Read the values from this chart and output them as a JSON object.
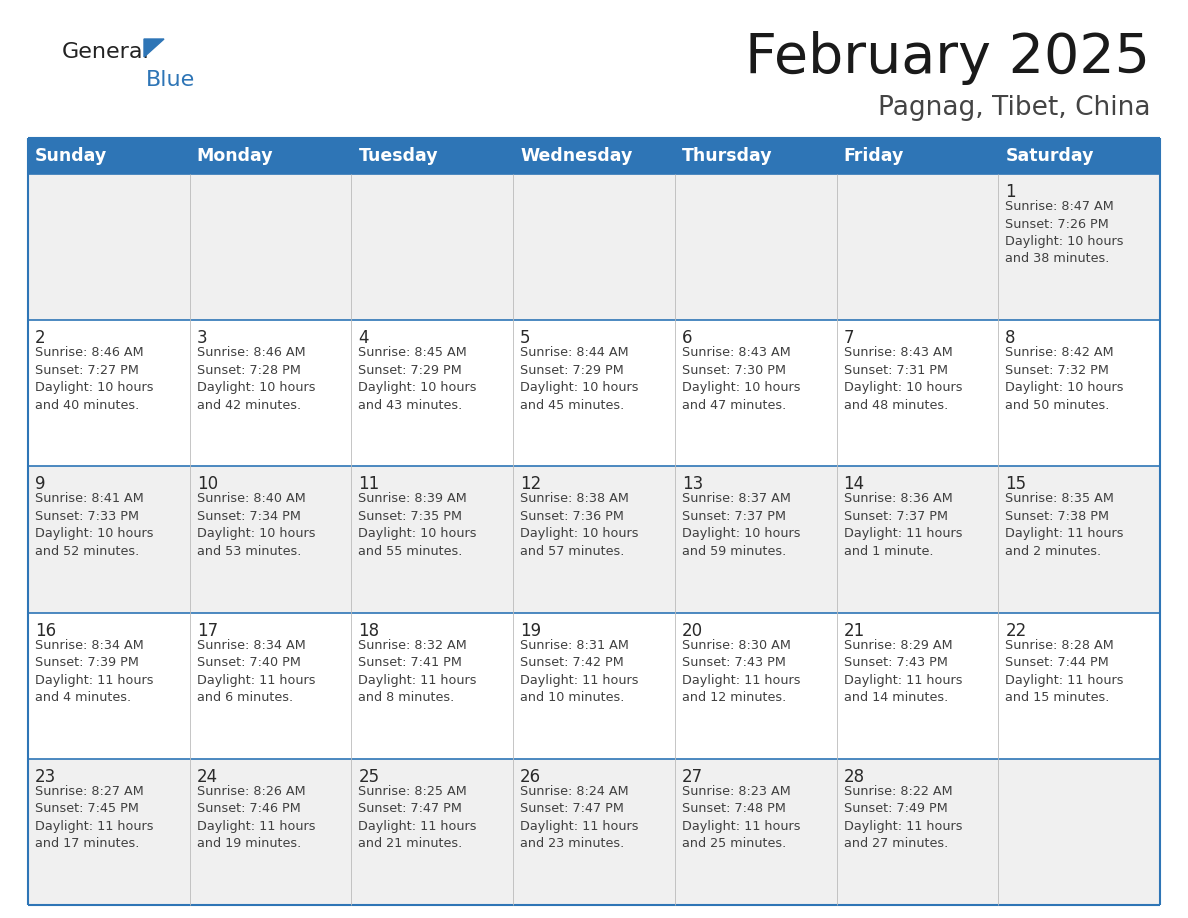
{
  "title": "February 2025",
  "subtitle": "Pagnag, Tibet, China",
  "header_color": "#2E75B6",
  "header_text_color": "#FFFFFF",
  "day_names": [
    "Sunday",
    "Monday",
    "Tuesday",
    "Wednesday",
    "Thursday",
    "Friday",
    "Saturday"
  ],
  "row_color_even": "#FFFFFF",
  "row_color_odd": "#F0F0F0",
  "border_color": "#2E75B6",
  "text_color": "#404040",
  "title_color": "#1a1a1a",
  "subtitle_color": "#444444",
  "calendar": [
    [
      null,
      null,
      null,
      null,
      null,
      null,
      {
        "day": 1,
        "sunrise": "8:47 AM",
        "sunset": "7:26 PM",
        "daylight_line1": "Daylight: 10 hours",
        "daylight_line2": "and 38 minutes."
      }
    ],
    [
      {
        "day": 2,
        "sunrise": "8:46 AM",
        "sunset": "7:27 PM",
        "daylight_line1": "Daylight: 10 hours",
        "daylight_line2": "and 40 minutes."
      },
      {
        "day": 3,
        "sunrise": "8:46 AM",
        "sunset": "7:28 PM",
        "daylight_line1": "Daylight: 10 hours",
        "daylight_line2": "and 42 minutes."
      },
      {
        "day": 4,
        "sunrise": "8:45 AM",
        "sunset": "7:29 PM",
        "daylight_line1": "Daylight: 10 hours",
        "daylight_line2": "and 43 minutes."
      },
      {
        "day": 5,
        "sunrise": "8:44 AM",
        "sunset": "7:29 PM",
        "daylight_line1": "Daylight: 10 hours",
        "daylight_line2": "and 45 minutes."
      },
      {
        "day": 6,
        "sunrise": "8:43 AM",
        "sunset": "7:30 PM",
        "daylight_line1": "Daylight: 10 hours",
        "daylight_line2": "and 47 minutes."
      },
      {
        "day": 7,
        "sunrise": "8:43 AM",
        "sunset": "7:31 PM",
        "daylight_line1": "Daylight: 10 hours",
        "daylight_line2": "and 48 minutes."
      },
      {
        "day": 8,
        "sunrise": "8:42 AM",
        "sunset": "7:32 PM",
        "daylight_line1": "Daylight: 10 hours",
        "daylight_line2": "and 50 minutes."
      }
    ],
    [
      {
        "day": 9,
        "sunrise": "8:41 AM",
        "sunset": "7:33 PM",
        "daylight_line1": "Daylight: 10 hours",
        "daylight_line2": "and 52 minutes."
      },
      {
        "day": 10,
        "sunrise": "8:40 AM",
        "sunset": "7:34 PM",
        "daylight_line1": "Daylight: 10 hours",
        "daylight_line2": "and 53 minutes."
      },
      {
        "day": 11,
        "sunrise": "8:39 AM",
        "sunset": "7:35 PM",
        "daylight_line1": "Daylight: 10 hours",
        "daylight_line2": "and 55 minutes."
      },
      {
        "day": 12,
        "sunrise": "8:38 AM",
        "sunset": "7:36 PM",
        "daylight_line1": "Daylight: 10 hours",
        "daylight_line2": "and 57 minutes."
      },
      {
        "day": 13,
        "sunrise": "8:37 AM",
        "sunset": "7:37 PM",
        "daylight_line1": "Daylight: 10 hours",
        "daylight_line2": "and 59 minutes."
      },
      {
        "day": 14,
        "sunrise": "8:36 AM",
        "sunset": "7:37 PM",
        "daylight_line1": "Daylight: 11 hours",
        "daylight_line2": "and 1 minute."
      },
      {
        "day": 15,
        "sunrise": "8:35 AM",
        "sunset": "7:38 PM",
        "daylight_line1": "Daylight: 11 hours",
        "daylight_line2": "and 2 minutes."
      }
    ],
    [
      {
        "day": 16,
        "sunrise": "8:34 AM",
        "sunset": "7:39 PM",
        "daylight_line1": "Daylight: 11 hours",
        "daylight_line2": "and 4 minutes."
      },
      {
        "day": 17,
        "sunrise": "8:34 AM",
        "sunset": "7:40 PM",
        "daylight_line1": "Daylight: 11 hours",
        "daylight_line2": "and 6 minutes."
      },
      {
        "day": 18,
        "sunrise": "8:32 AM",
        "sunset": "7:41 PM",
        "daylight_line1": "Daylight: 11 hours",
        "daylight_line2": "and 8 minutes."
      },
      {
        "day": 19,
        "sunrise": "8:31 AM",
        "sunset": "7:42 PM",
        "daylight_line1": "Daylight: 11 hours",
        "daylight_line2": "and 10 minutes."
      },
      {
        "day": 20,
        "sunrise": "8:30 AM",
        "sunset": "7:43 PM",
        "daylight_line1": "Daylight: 11 hours",
        "daylight_line2": "and 12 minutes."
      },
      {
        "day": 21,
        "sunrise": "8:29 AM",
        "sunset": "7:43 PM",
        "daylight_line1": "Daylight: 11 hours",
        "daylight_line2": "and 14 minutes."
      },
      {
        "day": 22,
        "sunrise": "8:28 AM",
        "sunset": "7:44 PM",
        "daylight_line1": "Daylight: 11 hours",
        "daylight_line2": "and 15 minutes."
      }
    ],
    [
      {
        "day": 23,
        "sunrise": "8:27 AM",
        "sunset": "7:45 PM",
        "daylight_line1": "Daylight: 11 hours",
        "daylight_line2": "and 17 minutes."
      },
      {
        "day": 24,
        "sunrise": "8:26 AM",
        "sunset": "7:46 PM",
        "daylight_line1": "Daylight: 11 hours",
        "daylight_line2": "and 19 minutes."
      },
      {
        "day": 25,
        "sunrise": "8:25 AM",
        "sunset": "7:47 PM",
        "daylight_line1": "Daylight: 11 hours",
        "daylight_line2": "and 21 minutes."
      },
      {
        "day": 26,
        "sunrise": "8:24 AM",
        "sunset": "7:47 PM",
        "daylight_line1": "Daylight: 11 hours",
        "daylight_line2": "and 23 minutes."
      },
      {
        "day": 27,
        "sunrise": "8:23 AM",
        "sunset": "7:48 PM",
        "daylight_line1": "Daylight: 11 hours",
        "daylight_line2": "and 25 minutes."
      },
      {
        "day": 28,
        "sunrise": "8:22 AM",
        "sunset": "7:49 PM",
        "daylight_line1": "Daylight: 11 hours",
        "daylight_line2": "and 27 minutes."
      },
      null
    ]
  ]
}
